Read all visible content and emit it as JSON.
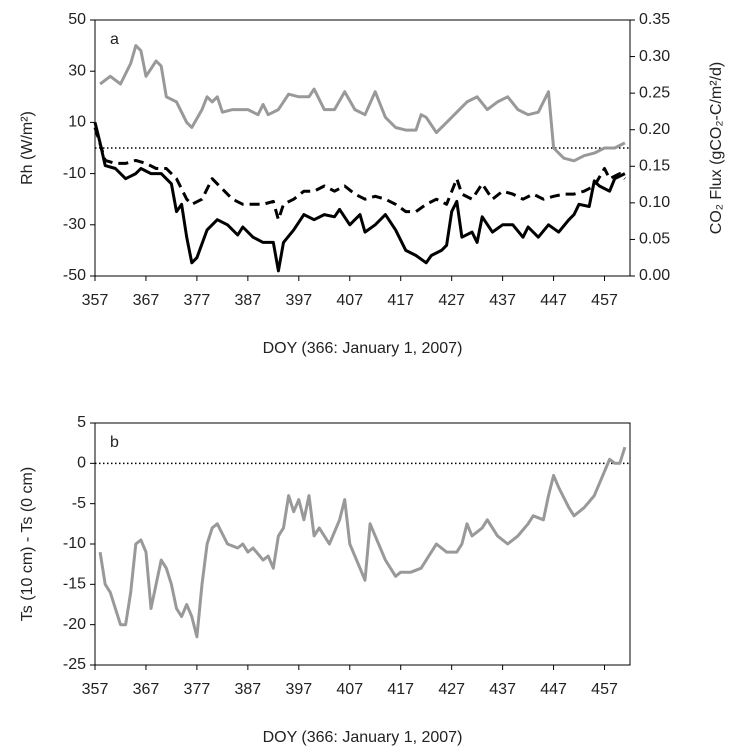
{
  "chart_data": [
    {
      "type": "line",
      "panel_label": "a",
      "xlabel": "DOY (366: January 1, 2007)",
      "ylabel": "Rh (W/m²)",
      "y2label": "CO₂ Flux (gCO₂-C/m²/d)",
      "xlim": [
        357,
        462
      ],
      "xticks": [
        357,
        367,
        377,
        387,
        397,
        407,
        417,
        427,
        437,
        447,
        457
      ],
      "ylim": [
        -50,
        50
      ],
      "yticks": [
        -50,
        -30,
        -10,
        10,
        30,
        50
      ],
      "y2lim": [
        0,
        0.35
      ],
      "y2ticks": [
        {
          "value": 0,
          "label": "0.00"
        },
        {
          "value": 0.05,
          "label": "0.05"
        },
        {
          "value": 0.1,
          "label": "0.10"
        },
        {
          "value": 0.15,
          "label": "0.15"
        },
        {
          "value": 0.2,
          "label": "0.20"
        },
        {
          "value": 0.25,
          "label": "0.25"
        },
        {
          "value": 0.3,
          "label": "0.30"
        },
        {
          "value": 0.35,
          "label": "0.35"
        }
      ],
      "zero_line": true,
      "series": [
        {
          "color": "#999999",
          "dash": false,
          "x": [
            358,
            360,
            362,
            364,
            365,
            366,
            367,
            369,
            370,
            371,
            373,
            375,
            376,
            378,
            379,
            380,
            381,
            382,
            384,
            387,
            389,
            390,
            391,
            393,
            395,
            397,
            399,
            400,
            402,
            404,
            406,
            408,
            410,
            412,
            414,
            416,
            418,
            420,
            421,
            422,
            424,
            426,
            428,
            430,
            432,
            434,
            436,
            438,
            440,
            442,
            444,
            446,
            447,
            449,
            451,
            453,
            455,
            457,
            459,
            461
          ],
          "values": [
            25,
            28,
            25,
            33,
            40,
            38,
            28,
            34,
            32,
            20,
            18,
            10,
            8,
            15,
            20,
            18,
            20,
            14,
            15,
            15,
            13,
            17,
            13,
            15,
            21,
            20,
            20,
            23,
            15,
            15,
            22,
            15,
            13,
            22,
            12,
            8,
            7,
            7,
            13,
            12,
            6,
            10,
            14,
            18,
            20,
            15,
            18,
            20,
            15,
            13,
            14,
            22,
            0,
            -4,
            -5,
            -3,
            -2,
            0,
            0,
            2
          ]
        },
        {
          "color": "#000000",
          "dash": false,
          "axis": "y2",
          "x": [
            357,
            358,
            359,
            361,
            363,
            365,
            366,
            368,
            370,
            372,
            373,
            374,
            375,
            376,
            377,
            379,
            381,
            383,
            385,
            386,
            388,
            390,
            392,
            393,
            394,
            396,
            398,
            400,
            402,
            404,
            405,
            407,
            409,
            410,
            412,
            414,
            416,
            418,
            420,
            422,
            423,
            425,
            426,
            427,
            428,
            429,
            431,
            432,
            433,
            435,
            437,
            439,
            441,
            442,
            444,
            446,
            448,
            450,
            451,
            452,
            454,
            455,
            456,
            458,
            459,
            461
          ],
          "values": [
            0.21,
            0.182,
            0.151,
            0.147,
            0.133,
            0.14,
            0.147,
            0.14,
            0.14,
            0.126,
            0.088,
            0.098,
            0.053,
            0.018,
            0.025,
            0.063,
            0.077,
            0.07,
            0.056,
            0.067,
            0.053,
            0.046,
            0.046,
            0.007,
            0.046,
            0.063,
            0.084,
            0.077,
            0.084,
            0.081,
            0.091,
            0.07,
            0.084,
            0.06,
            0.07,
            0.084,
            0.063,
            0.035,
            0.028,
            0.018,
            0.028,
            0.035,
            0.042,
            0.088,
            0.102,
            0.053,
            0.06,
            0.046,
            0.081,
            0.06,
            0.07,
            0.07,
            0.053,
            0.067,
            0.053,
            0.07,
            0.06,
            0.077,
            0.084,
            0.098,
            0.095,
            0.13,
            0.123,
            0.116,
            0.133,
            0.14
          ]
        },
        {
          "color": "#000000",
          "dash": true,
          "axis": "y2",
          "x": [
            357,
            359,
            361,
            363,
            365,
            367,
            369,
            371,
            373,
            375,
            376,
            378,
            380,
            382,
            384,
            386,
            388,
            390,
            392,
            393,
            394,
            396,
            398,
            400,
            402,
            404,
            406,
            408,
            410,
            412,
            414,
            416,
            418,
            420,
            422,
            424,
            426,
            428,
            429,
            431,
            433,
            435,
            437,
            439,
            441,
            443,
            445,
            447,
            449,
            451,
            453,
            455,
            457,
            458,
            460,
            461
          ],
          "values": [
            0.203,
            0.158,
            0.154,
            0.154,
            0.158,
            0.154,
            0.147,
            0.147,
            0.133,
            0.105,
            0.098,
            0.105,
            0.133,
            0.119,
            0.105,
            0.098,
            0.098,
            0.098,
            0.102,
            0.077,
            0.098,
            0.105,
            0.116,
            0.116,
            0.123,
            0.116,
            0.123,
            0.112,
            0.105,
            0.109,
            0.105,
            0.098,
            0.088,
            0.088,
            0.098,
            0.105,
            0.098,
            0.133,
            0.112,
            0.105,
            0.126,
            0.105,
            0.116,
            0.112,
            0.105,
            0.112,
            0.105,
            0.109,
            0.112,
            0.112,
            0.116,
            0.123,
            0.147,
            0.133,
            0.14,
            0.133
          ]
        }
      ]
    },
    {
      "type": "line",
      "panel_label": "b",
      "xlabel": "DOY (366: January 1, 2007)",
      "ylabel": "Ts (10 cm) - Ts (0 cm)",
      "xlim": [
        357,
        462
      ],
      "xticks": [
        357,
        367,
        377,
        387,
        397,
        407,
        417,
        427,
        437,
        447,
        457
      ],
      "ylim": [
        -25,
        5
      ],
      "yticks": [
        -25,
        -20,
        -15,
        -10,
        -5,
        0,
        5
      ],
      "zero_line": true,
      "series": [
        {
          "color": "#999999",
          "dash": false,
          "x": [
            358,
            359,
            360,
            362,
            363,
            364,
            365,
            366,
            367,
            368,
            369,
            370,
            371,
            372,
            373,
            374,
            375,
            376,
            377,
            378,
            379,
            380,
            381,
            383,
            385,
            386,
            387,
            388,
            390,
            391,
            392,
            393,
            394,
            395,
            396,
            397,
            398,
            399,
            400,
            401,
            403,
            405,
            406,
            407,
            409,
            410,
            411,
            412,
            414,
            415,
            416,
            417,
            419,
            421,
            423,
            424,
            426,
            428,
            429,
            430,
            431,
            433,
            434,
            436,
            438,
            440,
            442,
            443,
            445,
            446,
            447,
            448,
            450,
            451,
            453,
            455,
            457,
            458,
            459,
            460,
            461
          ],
          "values": [
            -11,
            -15,
            -16,
            -20,
            -20,
            -16,
            -10,
            -9.5,
            -11,
            -18,
            -15,
            -12,
            -13,
            -15,
            -18,
            -19,
            -17.5,
            -19,
            -21.5,
            -15,
            -10,
            -8,
            -7.5,
            -10,
            -10.5,
            -10,
            -11,
            -10.5,
            -12,
            -11.5,
            -13,
            -9,
            -8,
            -4,
            -6,
            -4.5,
            -7,
            -4,
            -9,
            -8,
            -10,
            -7,
            -4.5,
            -10,
            -13,
            -14.5,
            -7.5,
            -9,
            -12,
            -13,
            -14,
            -13.5,
            -13.5,
            -13,
            -11,
            -10,
            -11,
            -11,
            -10,
            -7.5,
            -9,
            -8,
            -7,
            -9,
            -10,
            -9,
            -7.5,
            -6.5,
            -7,
            -4,
            -1.5,
            -3,
            -5.5,
            -6.5,
            -5.5,
            -4,
            -1,
            0.5,
            0,
            0,
            2
          ]
        }
      ]
    }
  ]
}
